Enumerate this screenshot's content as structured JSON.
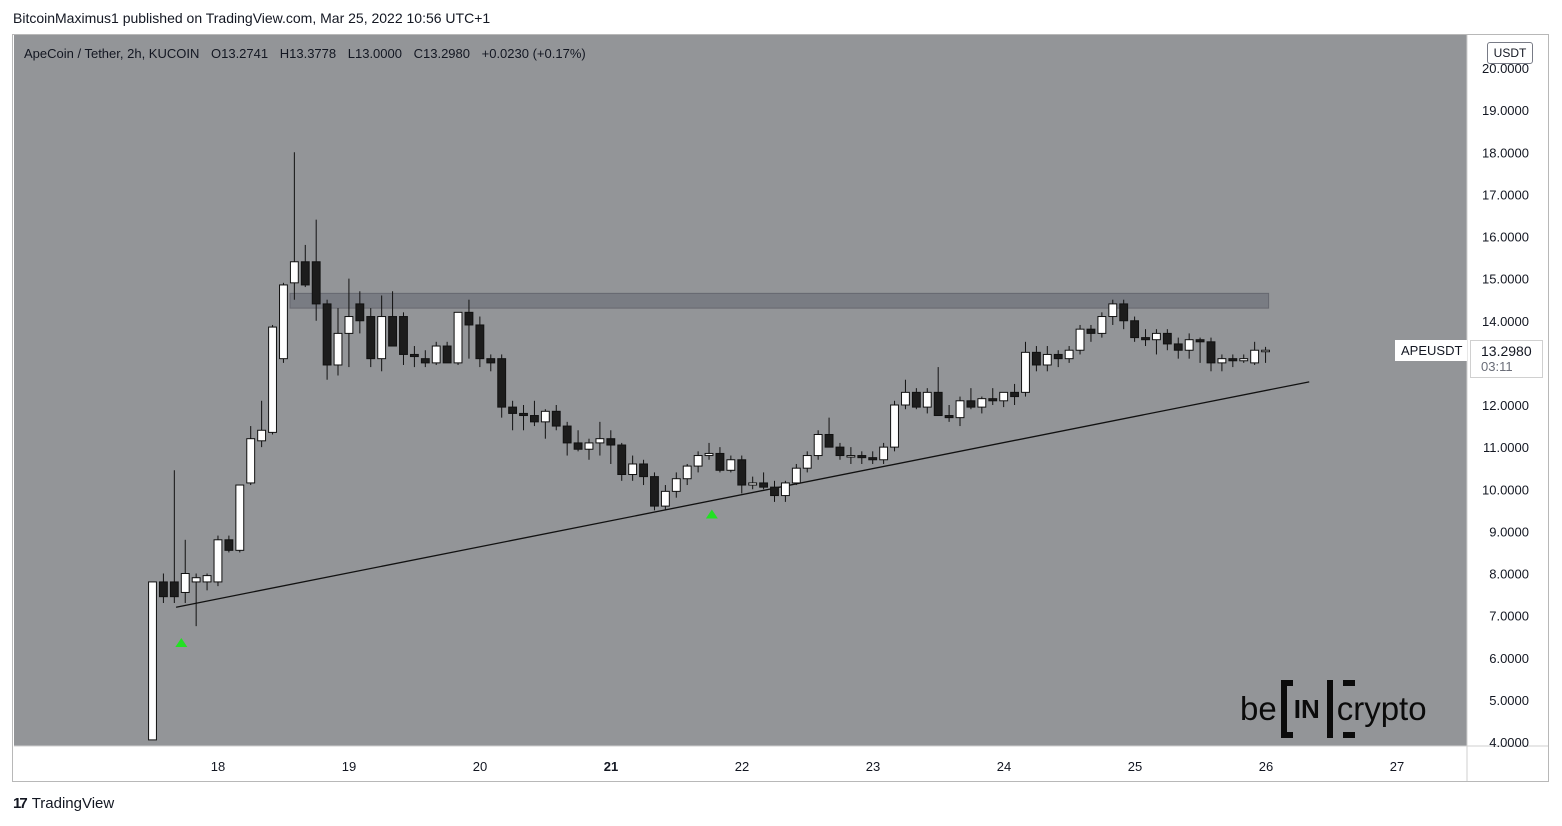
{
  "header": {
    "publisher": "BitcoinMaximus1 published on TradingView.com, Mar 25, 2022 10:56 UTC+1"
  },
  "legend": {
    "symbol": "ApeCoin / Tether, 2h, KUCOIN",
    "open_label": "O",
    "open": "13.2741",
    "high_label": "H",
    "high": "13.3778",
    "low_label": "L",
    "low": "13.0000",
    "close_label": "C",
    "close": "13.2980",
    "change": "+0.0230 (+0.17%)"
  },
  "price_scale": {
    "unit": "USDT",
    "symbol_tag": "APEUSDT",
    "last_price": "13.2980",
    "countdown": "03:11"
  },
  "footer": {
    "brand": "TradingView",
    "logo_glyph": "17"
  },
  "watermark": {
    "left": "be",
    "middle": "IN",
    "right": "crypto"
  },
  "colors": {
    "plot_bg": "#939598",
    "up_candle": "#ffffff",
    "down_candle": "#1c1c1c",
    "resistance_zone": "#757880",
    "marker": "#22e122",
    "line": "#111111"
  },
  "chart_data": {
    "type": "candlestick",
    "title": "ApeCoin / Tether, 2h, KUCOIN",
    "ylabel": "USDT",
    "ylim": [
      4.0,
      20.0
    ],
    "yticks": [
      "4.0000",
      "5.0000",
      "6.0000",
      "7.0000",
      "8.0000",
      "9.0000",
      "10.0000",
      "11.0000",
      "12.0000",
      "13.0000",
      "14.0000",
      "15.0000",
      "16.0000",
      "17.0000",
      "18.0000",
      "19.0000",
      "20.0000"
    ],
    "xticks": [
      {
        "label": "18",
        "day": 18.0,
        "bold": false
      },
      {
        "label": "19",
        "day": 19.0,
        "bold": false
      },
      {
        "label": "20",
        "day": 20.0,
        "bold": false
      },
      {
        "label": "21",
        "day": 21.0,
        "bold": true
      },
      {
        "label": "22",
        "day": 22.0,
        "bold": false
      },
      {
        "label": "23",
        "day": 23.0,
        "bold": false
      },
      {
        "label": "24",
        "day": 24.0,
        "bold": false
      },
      {
        "label": "25",
        "day": 25.0,
        "bold": false
      },
      {
        "label": "26",
        "day": 26.0,
        "bold": false
      },
      {
        "label": "27",
        "day": 27.0,
        "bold": false
      }
    ],
    "candles_day_start": 17.5,
    "candle_interval_days": 0.0833,
    "candles": [
      [
        4.05,
        7.8,
        4.05,
        7.8
      ],
      [
        7.8,
        8.0,
        7.3,
        7.45
      ],
      [
        7.8,
        10.45,
        7.3,
        7.45
      ],
      [
        7.55,
        8.8,
        7.3,
        8.0
      ],
      [
        7.8,
        8.0,
        6.75,
        7.9
      ],
      [
        7.8,
        8.0,
        7.6,
        7.95
      ],
      [
        7.8,
        8.9,
        7.7,
        8.8
      ],
      [
        8.8,
        8.9,
        8.5,
        8.55
      ],
      [
        8.55,
        10.1,
        8.5,
        10.1
      ],
      [
        10.15,
        11.5,
        10.1,
        11.2
      ],
      [
        11.15,
        12.1,
        11.0,
        11.4
      ],
      [
        11.35,
        13.9,
        11.3,
        13.85
      ],
      [
        13.1,
        14.9,
        13.0,
        14.85
      ],
      [
        14.9,
        18.0,
        14.5,
        15.4
      ],
      [
        15.4,
        15.8,
        14.8,
        14.85
      ],
      [
        15.4,
        16.4,
        14.0,
        14.4
      ],
      [
        14.4,
        14.5,
        12.6,
        12.95
      ],
      [
        12.95,
        14.3,
        12.7,
        13.7
      ],
      [
        13.7,
        15.0,
        12.9,
        14.1
      ],
      [
        14.4,
        14.7,
        13.7,
        14.0
      ],
      [
        14.1,
        14.3,
        12.9,
        13.1
      ],
      [
        13.1,
        14.6,
        12.8,
        14.1
      ],
      [
        14.1,
        14.7,
        13.5,
        13.4
      ],
      [
        14.1,
        14.2,
        12.95,
        13.2
      ],
      [
        13.2,
        13.4,
        12.9,
        13.15
      ],
      [
        13.1,
        13.3,
        12.9,
        13.0
      ],
      [
        13.0,
        13.5,
        12.95,
        13.4
      ],
      [
        13.4,
        13.5,
        13.0,
        13.0
      ],
      [
        13.0,
        14.2,
        12.95,
        14.2
      ],
      [
        14.2,
        14.5,
        13.1,
        13.9
      ],
      [
        13.9,
        14.1,
        12.9,
        13.1
      ],
      [
        13.1,
        13.2,
        12.8,
        13.0
      ],
      [
        13.1,
        13.2,
        11.7,
        11.95
      ],
      [
        11.95,
        12.1,
        11.4,
        11.8
      ],
      [
        11.8,
        12.0,
        11.4,
        11.75
      ],
      [
        11.75,
        12.1,
        11.5,
        11.6
      ],
      [
        11.6,
        11.9,
        11.2,
        11.85
      ],
      [
        11.85,
        12.0,
        11.4,
        11.5
      ],
      [
        11.5,
        11.6,
        10.8,
        11.1
      ],
      [
        11.1,
        11.4,
        10.9,
        10.95
      ],
      [
        10.95,
        11.2,
        10.7,
        11.1
      ],
      [
        11.1,
        11.6,
        10.8,
        11.2
      ],
      [
        11.2,
        11.4,
        10.6,
        11.05
      ],
      [
        11.05,
        11.1,
        10.2,
        10.35
      ],
      [
        10.35,
        10.8,
        10.2,
        10.6
      ],
      [
        10.6,
        10.7,
        10.1,
        10.3
      ],
      [
        10.3,
        10.4,
        9.5,
        9.6
      ],
      [
        9.6,
        10.1,
        9.5,
        9.95
      ],
      [
        9.95,
        10.4,
        9.8,
        10.25
      ],
      [
        10.25,
        10.6,
        10.1,
        10.55
      ],
      [
        10.55,
        10.9,
        10.4,
        10.8
      ],
      [
        10.8,
        11.1,
        10.7,
        10.85
      ],
      [
        10.85,
        11.0,
        10.4,
        10.45
      ],
      [
        10.45,
        10.8,
        10.4,
        10.7
      ],
      [
        10.7,
        10.8,
        9.9,
        10.1
      ],
      [
        10.1,
        10.3,
        10.0,
        10.15
      ],
      [
        10.15,
        10.4,
        10.0,
        10.05
      ],
      [
        10.05,
        10.2,
        9.7,
        9.85
      ],
      [
        9.85,
        10.2,
        9.7,
        10.15
      ],
      [
        10.15,
        10.6,
        10.1,
        10.5
      ],
      [
        10.5,
        10.9,
        10.4,
        10.8
      ],
      [
        10.8,
        11.4,
        10.7,
        11.3
      ],
      [
        11.3,
        11.7,
        11.1,
        11.0
      ],
      [
        11.0,
        11.1,
        10.7,
        10.8
      ],
      [
        10.8,
        11.0,
        10.6,
        10.8
      ],
      [
        10.8,
        10.9,
        10.6,
        10.75
      ],
      [
        10.75,
        10.9,
        10.6,
        10.7
      ],
      [
        10.7,
        11.1,
        10.6,
        11.0
      ],
      [
        11.0,
        12.1,
        10.9,
        12.0
      ],
      [
        12.0,
        12.6,
        11.9,
        12.3
      ],
      [
        12.3,
        12.4,
        11.9,
        11.95
      ],
      [
        11.95,
        12.4,
        11.8,
        12.3
      ],
      [
        12.3,
        12.9,
        11.9,
        11.75
      ],
      [
        11.75,
        12.0,
        11.6,
        11.7
      ],
      [
        11.7,
        12.2,
        11.5,
        12.1
      ],
      [
        12.1,
        12.4,
        11.9,
        11.95
      ],
      [
        11.95,
        12.2,
        11.8,
        12.15
      ],
      [
        12.15,
        12.4,
        12.0,
        12.1
      ],
      [
        12.1,
        12.3,
        11.95,
        12.3
      ],
      [
        12.3,
        12.5,
        12.0,
        12.2
      ],
      [
        12.3,
        13.5,
        12.2,
        13.25
      ],
      [
        13.25,
        13.4,
        12.8,
        12.95
      ],
      [
        12.95,
        13.4,
        12.8,
        13.2
      ],
      [
        13.2,
        13.3,
        12.9,
        13.1
      ],
      [
        13.1,
        13.4,
        13.0,
        13.3
      ],
      [
        13.3,
        13.9,
        13.2,
        13.8
      ],
      [
        13.8,
        13.9,
        13.5,
        13.7
      ],
      [
        13.7,
        14.2,
        13.6,
        14.1
      ],
      [
        14.1,
        14.5,
        13.9,
        14.4
      ],
      [
        14.4,
        14.5,
        13.8,
        14.0
      ],
      [
        14.0,
        14.1,
        13.5,
        13.6
      ],
      [
        13.6,
        13.8,
        13.4,
        13.55
      ],
      [
        13.55,
        13.8,
        13.2,
        13.7
      ],
      [
        13.7,
        13.8,
        13.3,
        13.45
      ],
      [
        13.45,
        13.6,
        13.1,
        13.3
      ],
      [
        13.3,
        13.7,
        13.1,
        13.55
      ],
      [
        13.55,
        13.6,
        13.0,
        13.5
      ],
      [
        13.5,
        13.6,
        12.8,
        13.0
      ],
      [
        13.0,
        13.2,
        12.8,
        13.1
      ],
      [
        13.1,
        13.2,
        12.9,
        13.05
      ],
      [
        13.05,
        13.2,
        13.0,
        13.1
      ],
      [
        13.0,
        13.5,
        12.95,
        13.3
      ],
      [
        13.27,
        13.38,
        13.0,
        13.3
      ]
    ],
    "resistance_zone": {
      "low": 14.3,
      "high": 14.65,
      "day_start": 18.55,
      "day_end": 26.02
    },
    "trendline": {
      "start": {
        "day": 17.68,
        "price": 7.2
      },
      "end": {
        "day": 26.33,
        "price": 12.55
      }
    },
    "markers": [
      {
        "day": 17.72,
        "price": 6.35,
        "type": "up-arrow"
      },
      {
        "day": 21.77,
        "price": 9.4,
        "type": "up-arrow"
      }
    ],
    "grid": false,
    "legend_position": "top-left"
  }
}
